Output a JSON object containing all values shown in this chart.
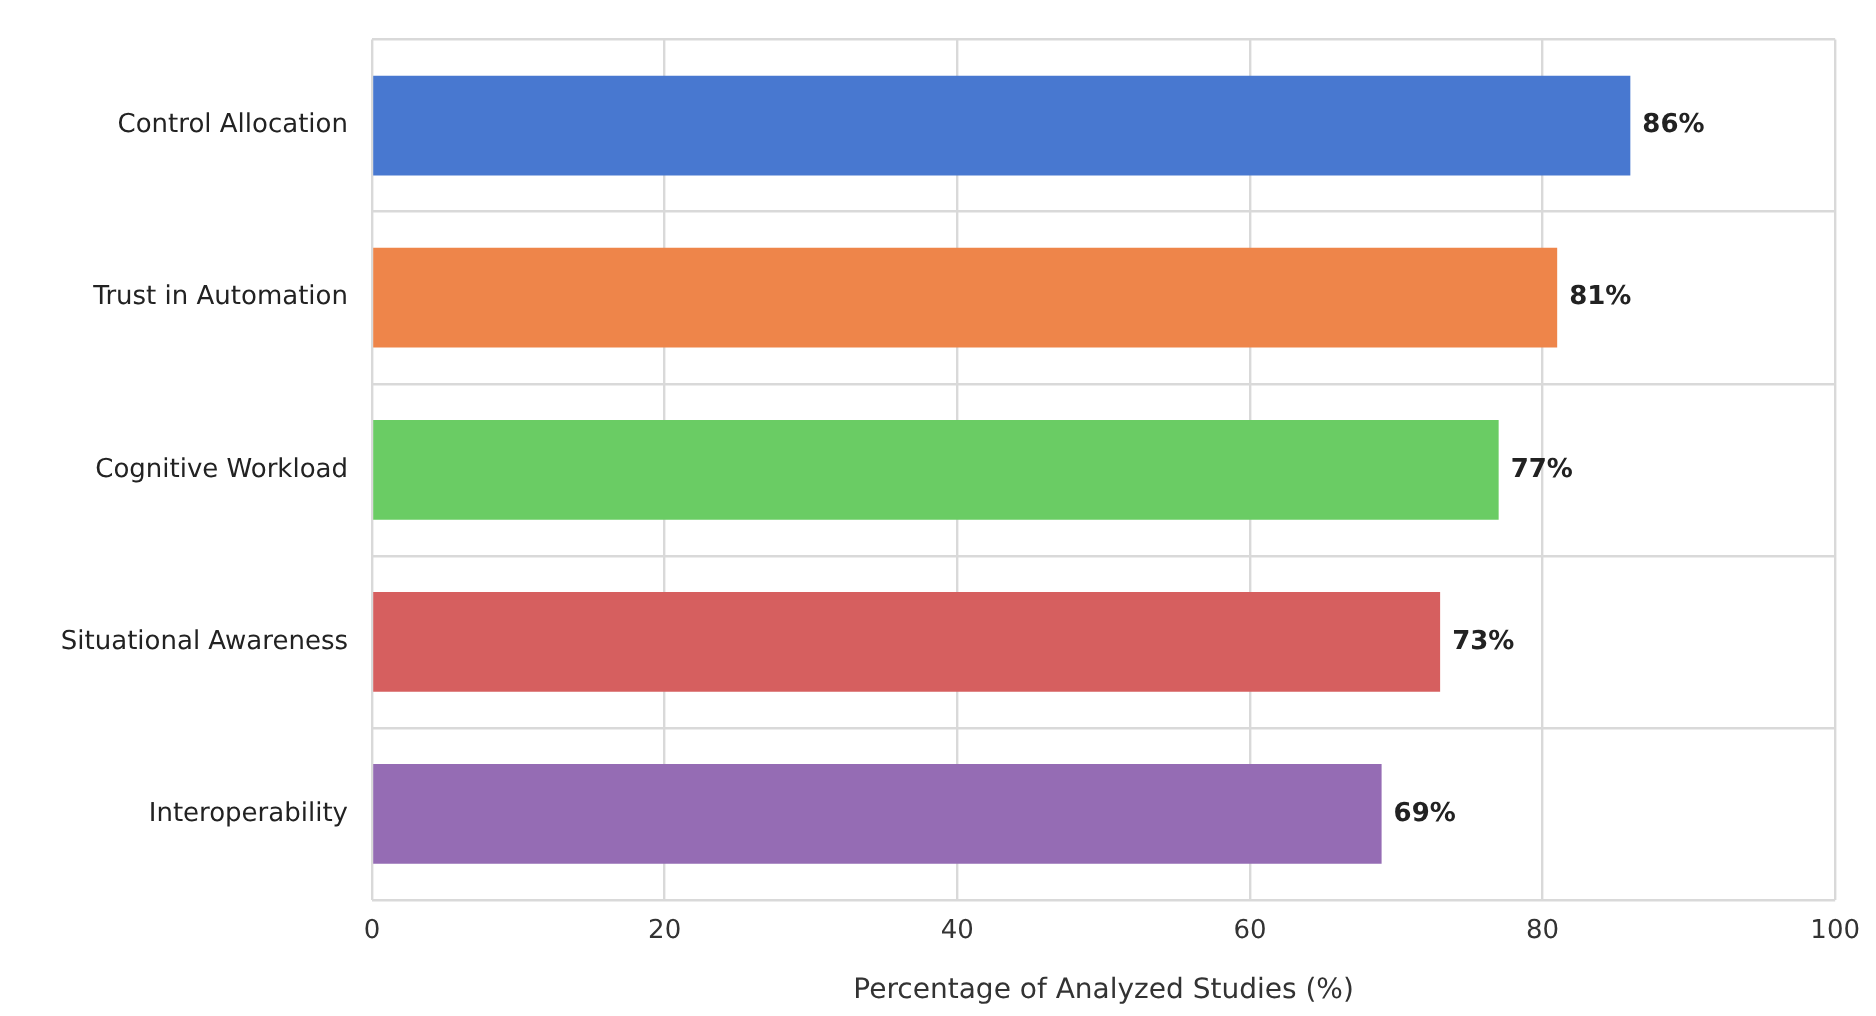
{
  "chart_data": {
    "type": "bar",
    "orientation": "horizontal",
    "xlabel": "Percentage of Analyzed Studies (%)",
    "categories": [
      "Control Allocation",
      "Trust in Automation",
      "Cognitive Workload",
      "Situational Awareness",
      "Interoperability"
    ],
    "values": [
      86,
      81,
      77,
      73,
      69
    ],
    "colors": [
      "#4878d0",
      "#ee854a",
      "#6acc64",
      "#d65f5f",
      "#956cb4"
    ],
    "value_labels": [
      "86%",
      "81%",
      "77%",
      "73%",
      "69%"
    ],
    "xlim": [
      0,
      100
    ],
    "xticks": [
      0,
      20,
      40,
      60,
      80,
      100
    ],
    "grid": true
  }
}
